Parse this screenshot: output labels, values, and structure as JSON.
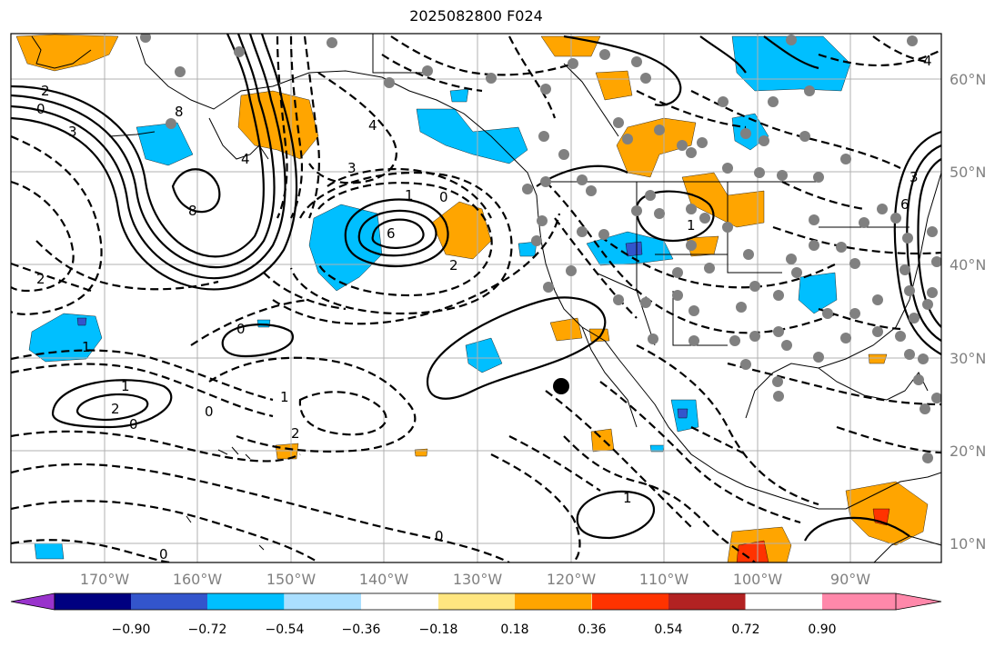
{
  "title": "2025082800 F024",
  "lon_labels": [
    "170°W",
    "160°W",
    "150°W",
    "140°W",
    "130°W",
    "120°W",
    "110°W",
    "100°W",
    "90°W"
  ],
  "lat_labels": [
    "60°N",
    "50°N",
    "40°N",
    "30°N",
    "20°N",
    "10°N"
  ],
  "colorbar": {
    "colors": [
      "#9933cc",
      "#000080",
      "#3355cc",
      "#00bfff",
      "#aadfff",
      "#ffffff",
      "#ffe680",
      "#ffa500",
      "#ff3300",
      "#b22222",
      "#ff88aa"
    ],
    "labels": [
      "−0.90",
      "−0.72",
      "−0.54",
      "−0.36",
      "−0.18",
      "0.18",
      "0.36",
      "0.54",
      "0.72",
      "0.90"
    ]
  },
  "contour_labels": [
    "8",
    "8",
    "4",
    "2",
    "0",
    "3",
    "2",
    "4",
    "3",
    "6",
    "1",
    "0",
    "2",
    "1",
    "1",
    "2",
    "0",
    "1",
    "0",
    "0",
    "1",
    "0",
    "2",
    "1",
    "0",
    "6",
    "3",
    "4"
  ],
  "colors": {
    "grid": "#b0b0b0",
    "station": "#808080",
    "blue_fill": "#00bfff",
    "orange_fill": "#ffa500",
    "red_fill": "#ff3300",
    "purple_fill": "#3355cc"
  }
}
